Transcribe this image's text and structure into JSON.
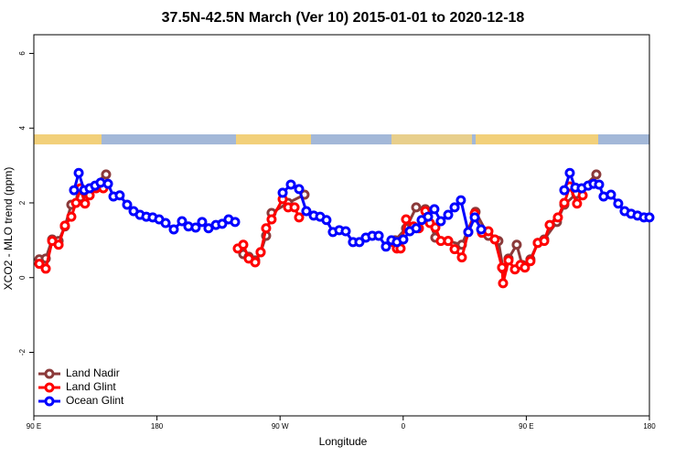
{
  "chart_data": {
    "type": "line",
    "title": "37.5N-42.5N March (Ver 10)   2015-01-01 to 2020-12-18",
    "x_label": "Longitude",
    "y_label": "XCO2 - MLO trend (ppm)",
    "xlim": [
      90,
      540
    ],
    "ylim": [
      -3.7,
      6.5
    ],
    "xticks": [
      {
        "value": 90,
        "label": "90 E"
      },
      180,
      {
        "value": 270,
        "label": "90 W"
      },
      {
        "value": 360,
        "label": "0"
      },
      {
        "value": 450,
        "label": "90 E"
      },
      {
        "value": 540,
        "label": "180"
      }
    ],
    "yticks": [
      -2,
      0,
      2,
      4,
      6
    ],
    "legend": "bottom-left",
    "series": [
      {
        "name": "Land Nadir",
        "color": "#8b3a3a",
        "x": [
          94.0,
          98.7,
          103.4,
          108.1,
          112.7,
          117.4,
          124.1,
          128.8,
          142.8,
          null,
          243.1,
          247.1,
          251.8,
          255.8,
          259.8,
          263.8,
          275.9,
          287.9,
          null,
          354.1,
          362.1,
          369.5,
          376.2,
          383.5,
          392.9,
          402.9,
          412.9,
          422.3,
          429.6,
          433.0,
          437.0,
          443.0,
          447.0,
          453.0,
          458.4,
          463.1,
          472.4,
          477.8,
          486.5,
          501.2
        ],
        "values": [
          0.49,
          0.51,
          1.02,
          0.98,
          1.37,
          1.95,
          2.15,
          2.34,
          2.76,
          null,
          0.63,
          0.56,
          0.46,
          0.68,
          1.12,
          1.73,
          2.0,
          2.22,
          null,
          1.0,
          1.32,
          1.88,
          1.83,
          1.07,
          0.98,
          0.88,
          1.76,
          1.12,
          0.98,
          0.24,
          0.51,
          0.88,
          0.34,
          0.49,
          0.93,
          1.02,
          1.49,
          1.95,
          2.24,
          2.76
        ]
      },
      {
        "name": "Land Glint",
        "color": "#ff0000",
        "x": [
          94.0,
          98.7,
          103.4,
          108.1,
          112.7,
          117.4,
          120.8,
          124.1,
          127.4,
          130.8,
          135.5,
          140.8,
          null,
          239.1,
          243.1,
          247.1,
          251.8,
          255.8,
          259.8,
          263.8,
          271.9,
          275.9,
          280.6,
          283.9,
          null,
          352.8,
          355.4,
          358.1,
          362.1,
          367.5,
          371.5,
          376.2,
          379.5,
          383.5,
          387.5,
          392.9,
          397.6,
          402.9,
          407.6,
          412.3,
          417.6,
          422.3,
          427.0,
          432.3,
          433.0,
          437.0,
          441.7,
          445.7,
          449.0,
          453.0,
          458.4,
          463.1,
          467.1,
          473.1,
          477.8,
          481.8,
          487.1,
          491.2
        ],
        "values": [
          0.37,
          0.24,
          0.98,
          0.88,
          1.39,
          1.63,
          2.0,
          2.39,
          1.98,
          2.2,
          2.39,
          2.39,
          null,
          0.78,
          0.88,
          0.51,
          0.41,
          0.68,
          1.32,
          1.56,
          2.1,
          1.88,
          1.88,
          1.61,
          null,
          0.95,
          0.78,
          0.78,
          1.56,
          1.37,
          1.32,
          1.78,
          1.46,
          1.34,
          0.98,
          0.98,
          0.76,
          0.54,
          1.22,
          1.71,
          1.2,
          1.24,
          1.02,
          0.27,
          -0.15,
          0.46,
          0.22,
          0.34,
          0.27,
          0.44,
          0.93,
          0.98,
          1.41,
          1.61,
          2.0,
          2.44,
          1.98,
          2.2
        ]
      },
      {
        "name": "Ocean Glint",
        "color": "#0000ff",
        "x": [
          119.4,
          122.8,
          126.8,
          130.8,
          134.8,
          138.8,
          144.2,
          148.2,
          152.8,
          158.2,
          162.9,
          167.6,
          172.2,
          176.9,
          181.6,
          186.3,
          192.3,
          198.3,
          203.0,
          208.3,
          213.0,
          217.7,
          223.1,
          227.7,
          232.4,
          237.1,
          null,
          271.9,
          277.9,
          283.9,
          289.2,
          294.6,
          299.3,
          303.9,
          308.6,
          313.3,
          318.0,
          323.3,
          328.0,
          332.7,
          337.4,
          342.1,
          347.4,
          351.4,
          355.4,
          360.1,
          364.8,
          369.5,
          373.5,
          378.2,
          382.8,
          387.5,
          392.9,
          397.6,
          402.2,
          407.6,
          412.3,
          417.0,
          null,
          477.8,
          481.8,
          485.8,
          490.5,
          495.2,
          499.2,
          503.2,
          506.5,
          511.9,
          517.2,
          521.9,
          526.6,
          531.3,
          536.0,
          540.0
        ],
        "values": [
          2.34,
          2.8,
          2.34,
          2.39,
          2.46,
          2.54,
          2.51,
          2.17,
          2.2,
          1.95,
          1.78,
          1.68,
          1.63,
          1.61,
          1.56,
          1.46,
          1.29,
          1.51,
          1.37,
          1.34,
          1.49,
          1.32,
          1.41,
          1.44,
          1.56,
          1.49,
          null,
          2.27,
          2.49,
          2.37,
          1.78,
          1.66,
          1.63,
          1.54,
          1.22,
          1.27,
          1.24,
          0.95,
          0.95,
          1.07,
          1.12,
          1.12,
          0.83,
          1.0,
          0.95,
          1.02,
          1.24,
          1.32,
          1.54,
          1.63,
          1.83,
          1.51,
          1.68,
          1.88,
          2.07,
          1.22,
          1.61,
          1.29,
          null,
          2.34,
          2.8,
          2.41,
          2.39,
          2.46,
          2.51,
          2.49,
          2.17,
          2.22,
          1.98,
          1.78,
          1.71,
          1.66,
          1.61,
          1.61
        ]
      }
    ]
  }
}
